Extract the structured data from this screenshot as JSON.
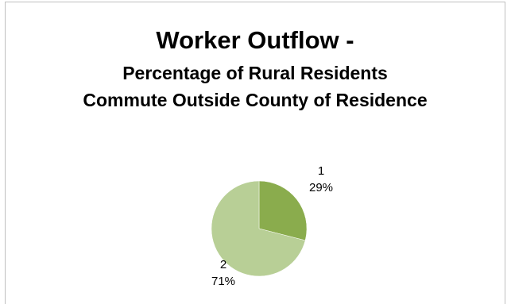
{
  "chart_data": {
    "type": "pie",
    "title": "Worker Outflow -",
    "subtitle": "Percentage of Rural Residents Commute Outside County of Residence",
    "categories": [
      "1",
      "2"
    ],
    "values": [
      29,
      71
    ],
    "data_labels": [
      "29%",
      "71%"
    ],
    "colors": [
      "#8aac4d",
      "#b8cf96"
    ],
    "legend": "none"
  }
}
